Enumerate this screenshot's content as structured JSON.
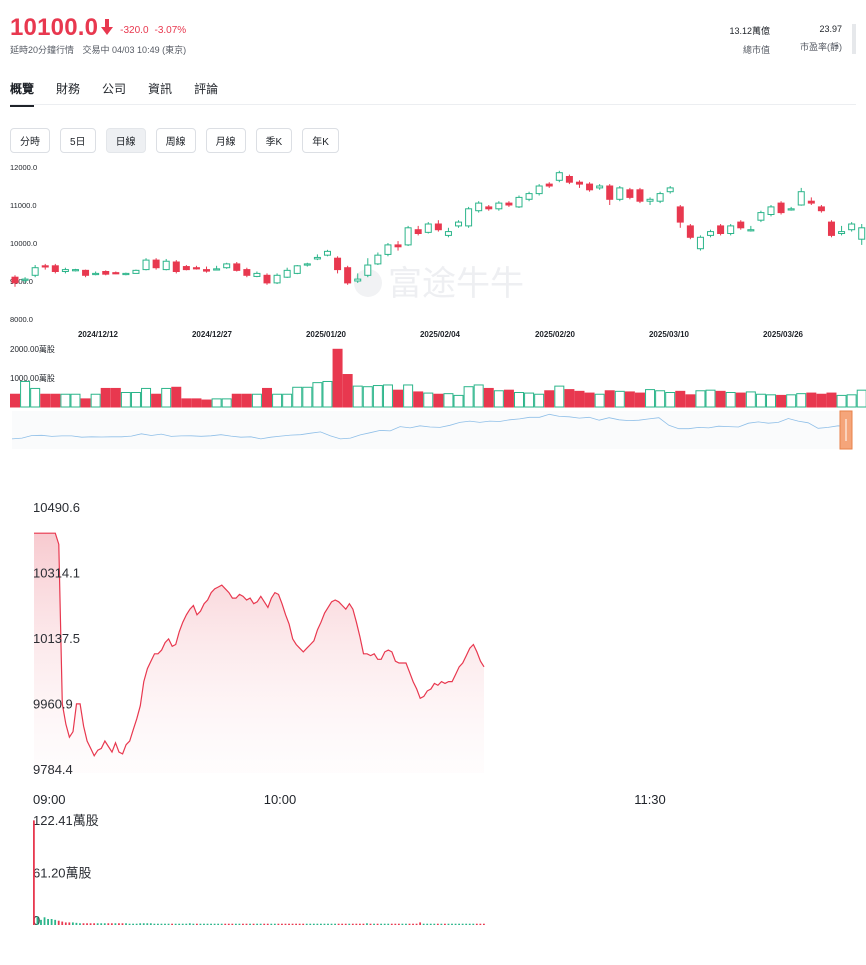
{
  "quote": {
    "price": "10100.0",
    "change": "-320.0",
    "change_pct": "-3.07%",
    "delay_note": "延時20分鐘行情",
    "trading_status": "交易中 04/03 10:49 (東京)",
    "market_cap_value": "13.12萬億",
    "market_cap_label": "總市值",
    "pe_value": "23.97",
    "pe_label": "市盈率(靜)"
  },
  "tabs": [
    {
      "label": "概覽",
      "active": true
    },
    {
      "label": "財務",
      "active": false
    },
    {
      "label": "公司",
      "active": false
    },
    {
      "label": "資訊",
      "active": false
    },
    {
      "label": "評論",
      "active": false
    }
  ],
  "periods": [
    {
      "label": "分時",
      "active": false
    },
    {
      "label": "5日",
      "active": false
    },
    {
      "label": "日線",
      "active": true
    },
    {
      "label": "周線",
      "active": false
    },
    {
      "label": "月線",
      "active": false
    },
    {
      "label": "季K",
      "active": false
    },
    {
      "label": "年K",
      "active": false
    }
  ],
  "watermark": "富途牛牛",
  "colors": {
    "up": "#2bb58a",
    "down": "#e8384f",
    "line": "#e8384f",
    "overview": "#8fbfe8"
  },
  "chart_data": [
    {
      "type": "candlestick",
      "y_ticks": [
        "12000.0",
        "11000.0",
        "10000.0",
        "9000.0",
        "8000.0"
      ],
      "ylim": [
        8000,
        12000
      ],
      "x_tick_labels": [
        "2024/12/12",
        "2024/12/27",
        "2025/01/20",
        "2025/02/04",
        "2025/02/20",
        "2025/03/10",
        "2025/03/26"
      ],
      "volume_ticks": [
        "2000.00萬股",
        "1000.00萬股"
      ],
      "candles": [
        {
          "o": 9100,
          "c": 8950,
          "h": 9150,
          "l": 8850
        },
        {
          "o": 9050,
          "c": 9050,
          "h": 9100,
          "l": 8950
        },
        {
          "o": 9150,
          "c": 9350,
          "h": 9420,
          "l": 9100
        },
        {
          "o": 9400,
          "c": 9380,
          "h": 9450,
          "l": 9300
        },
        {
          "o": 9400,
          "c": 9250,
          "h": 9450,
          "l": 9200
        },
        {
          "o": 9250,
          "c": 9300,
          "h": 9350,
          "l": 9200
        },
        {
          "o": 9300,
          "c": 9300,
          "h": 9320,
          "l": 9250
        },
        {
          "o": 9280,
          "c": 9150,
          "h": 9300,
          "l": 9100
        },
        {
          "o": 9180,
          "c": 9200,
          "h": 9250,
          "l": 9150
        },
        {
          "o": 9250,
          "c": 9180,
          "h": 9280,
          "l": 9150
        },
        {
          "o": 9220,
          "c": 9200,
          "h": 9250,
          "l": 9180
        },
        {
          "o": 9180,
          "c": 9200,
          "h": 9220,
          "l": 9150
        },
        {
          "o": 9200,
          "c": 9280,
          "h": 9300,
          "l": 9200
        },
        {
          "o": 9300,
          "c": 9550,
          "h": 9600,
          "l": 9280
        },
        {
          "o": 9550,
          "c": 9350,
          "h": 9600,
          "l": 9300
        },
        {
          "o": 9300,
          "c": 9520,
          "h": 9580,
          "l": 9280
        },
        {
          "o": 9500,
          "c": 9250,
          "h": 9550,
          "l": 9200
        },
        {
          "o": 9380,
          "c": 9300,
          "h": 9420,
          "l": 9280
        },
        {
          "o": 9350,
          "c": 9320,
          "h": 9400,
          "l": 9300
        },
        {
          "o": 9300,
          "c": 9260,
          "h": 9380,
          "l": 9220
        },
        {
          "o": 9300,
          "c": 9320,
          "h": 9400,
          "l": 9280
        },
        {
          "o": 9350,
          "c": 9450,
          "h": 9480,
          "l": 9320
        },
        {
          "o": 9450,
          "c": 9280,
          "h": 9500,
          "l": 9250
        },
        {
          "o": 9300,
          "c": 9150,
          "h": 9350,
          "l": 9100
        },
        {
          "o": 9120,
          "c": 9200,
          "h": 9250,
          "l": 9100
        },
        {
          "o": 9150,
          "c": 8950,
          "h": 9200,
          "l": 8900
        },
        {
          "o": 8950,
          "c": 9150,
          "h": 9200,
          "l": 8920
        },
        {
          "o": 9100,
          "c": 9280,
          "h": 9350,
          "l": 9080
        },
        {
          "o": 9200,
          "c": 9400,
          "h": 9420,
          "l": 9180
        },
        {
          "o": 9420,
          "c": 9450,
          "h": 9480,
          "l": 9380
        },
        {
          "o": 9580,
          "c": 9620,
          "h": 9700,
          "l": 9550
        },
        {
          "o": 9680,
          "c": 9780,
          "h": 9820,
          "l": 9650
        },
        {
          "o": 9600,
          "c": 9300,
          "h": 9650,
          "l": 9200
        },
        {
          "o": 9350,
          "c": 8950,
          "h": 9400,
          "l": 8900
        },
        {
          "o": 9000,
          "c": 9050,
          "h": 9200,
          "l": 8950
        },
        {
          "o": 9150,
          "c": 9420,
          "h": 9600,
          "l": 9100
        },
        {
          "o": 9450,
          "c": 9680,
          "h": 9750,
          "l": 9420
        },
        {
          "o": 9700,
          "c": 9950,
          "h": 10000,
          "l": 9650
        },
        {
          "o": 9950,
          "c": 9900,
          "h": 10050,
          "l": 9800
        },
        {
          "o": 9950,
          "c": 10400,
          "h": 10450,
          "l": 9920
        },
        {
          "o": 10350,
          "c": 10250,
          "h": 10450,
          "l": 10200
        },
        {
          "o": 10280,
          "c": 10500,
          "h": 10550,
          "l": 10250
        },
        {
          "o": 10500,
          "c": 10350,
          "h": 10600,
          "l": 10300
        },
        {
          "o": 10200,
          "c": 10300,
          "h": 10400,
          "l": 10150
        },
        {
          "o": 10450,
          "c": 10550,
          "h": 10600,
          "l": 10400
        },
        {
          "o": 10450,
          "c": 10900,
          "h": 10950,
          "l": 10400
        },
        {
          "o": 10850,
          "c": 11050,
          "h": 11100,
          "l": 10800
        },
        {
          "o": 10950,
          "c": 10900,
          "h": 11000,
          "l": 10850
        },
        {
          "o": 10900,
          "c": 11050,
          "h": 11100,
          "l": 10850
        },
        {
          "o": 11050,
          "c": 11000,
          "h": 11100,
          "l": 10950
        },
        {
          "o": 10950,
          "c": 11200,
          "h": 11250,
          "l": 10920
        },
        {
          "o": 11150,
          "c": 11300,
          "h": 11350,
          "l": 11100
        },
        {
          "o": 11300,
          "c": 11500,
          "h": 11550,
          "l": 11250
        },
        {
          "o": 11550,
          "c": 11500,
          "h": 11600,
          "l": 11450
        },
        {
          "o": 11650,
          "c": 11850,
          "h": 11900,
          "l": 11600
        },
        {
          "o": 11750,
          "c": 11600,
          "h": 11800,
          "l": 11550
        },
        {
          "o": 11600,
          "c": 11550,
          "h": 11650,
          "l": 11450
        },
        {
          "o": 11550,
          "c": 11400,
          "h": 11600,
          "l": 11350
        },
        {
          "o": 11450,
          "c": 11500,
          "h": 11550,
          "l": 11400
        },
        {
          "o": 11500,
          "c": 11150,
          "h": 11550,
          "l": 11000
        },
        {
          "o": 11150,
          "c": 11450,
          "h": 11500,
          "l": 11100
        },
        {
          "o": 11400,
          "c": 11200,
          "h": 11450,
          "l": 11150
        },
        {
          "o": 11400,
          "c": 11100,
          "h": 11450,
          "l": 11050
        },
        {
          "o": 11100,
          "c": 11150,
          "h": 11200,
          "l": 11000
        },
        {
          "o": 11100,
          "c": 11300,
          "h": 11350,
          "l": 11050
        },
        {
          "o": 11350,
          "c": 11450,
          "h": 11500,
          "l": 11300
        },
        {
          "o": 10950,
          "c": 10550,
          "h": 11000,
          "l": 10400
        },
        {
          "o": 10450,
          "c": 10150,
          "h": 10500,
          "l": 10100
        },
        {
          "o": 9850,
          "c": 10150,
          "h": 10200,
          "l": 9800
        },
        {
          "o": 10200,
          "c": 10300,
          "h": 10350,
          "l": 10150
        },
        {
          "o": 10450,
          "c": 10250,
          "h": 10500,
          "l": 10200
        },
        {
          "o": 10250,
          "c": 10450,
          "h": 10500,
          "l": 10200
        },
        {
          "o": 10550,
          "c": 10400,
          "h": 10600,
          "l": 10350
        },
        {
          "o": 10350,
          "c": 10350,
          "h": 10450,
          "l": 10300
        },
        {
          "o": 10600,
          "c": 10800,
          "h": 10850,
          "l": 10550
        },
        {
          "o": 10750,
          "c": 10950,
          "h": 11000,
          "l": 10700
        },
        {
          "o": 11050,
          "c": 10800,
          "h": 11100,
          "l": 10750
        },
        {
          "o": 10900,
          "c": 10900,
          "h": 10950,
          "l": 10850
        },
        {
          "o": 11000,
          "c": 11350,
          "h": 11450,
          "l": 10980
        },
        {
          "o": 11100,
          "c": 11050,
          "h": 11200,
          "l": 11000
        },
        {
          "o": 10950,
          "c": 10850,
          "h": 11000,
          "l": 10800
        },
        {
          "o": 10550,
          "c": 10200,
          "h": 10600,
          "l": 10150
        },
        {
          "o": 10250,
          "c": 10300,
          "h": 10450,
          "l": 10200
        },
        {
          "o": 10350,
          "c": 10500,
          "h": 10550,
          "l": 10300
        },
        {
          "o": 10100,
          "c": 10400,
          "h": 10500,
          "l": 9950
        }
      ],
      "volume": [
        440,
        880,
        640,
        440,
        440,
        440,
        440,
        280,
        440,
        640,
        640,
        500,
        500,
        640,
        440,
        640,
        680,
        280,
        280,
        240,
        280,
        280,
        440,
        440,
        440,
        640,
        440,
        440,
        680,
        680,
        840,
        880,
        1990,
        1120,
        720,
        700,
        740,
        760,
        580,
        760,
        520,
        480,
        440,
        460,
        400,
        700,
        760,
        640,
        560,
        580,
        500,
        480,
        440,
        560,
        720,
        600,
        540,
        480,
        440,
        560,
        540,
        520,
        480,
        600,
        560,
        500,
        540,
        420,
        560,
        580,
        540,
        500,
        480,
        520,
        440,
        420,
        400,
        420,
        460,
        480,
        440,
        480,
        400,
        420,
        580
      ]
    },
    {
      "type": "area",
      "y_ticks": [
        "10490.6",
        "10314.1",
        "10137.5",
        "9960.9",
        "9784.4"
      ],
      "ylim": [
        9784.4,
        10490.6
      ],
      "x_tick_labels": [
        "09:00",
        "10:00",
        "11:30"
      ],
      "volume_ticks": [
        "122.41萬股",
        "61.20萬股",
        "0"
      ],
      "prices": [
        10420,
        10420,
        10420,
        10420,
        10420,
        10420,
        10420,
        10390,
        9960,
        9905,
        9870,
        9885,
        9960,
        9960,
        9900,
        9860,
        9840,
        9820,
        9835,
        9840,
        9860,
        9845,
        9830,
        9855,
        9830,
        9825,
        9850,
        9860,
        9890,
        9920,
        9955,
        10020,
        10055,
        10075,
        10095,
        10095,
        10105,
        10125,
        10135,
        10115,
        10120,
        10155,
        10180,
        10200,
        10215,
        10225,
        10200,
        10210,
        10230,
        10240,
        10260,
        10270,
        10275,
        10280,
        10270,
        10260,
        10245,
        10245,
        10255,
        10250,
        10240,
        10245,
        10230,
        10235,
        10250,
        10235,
        10220,
        10245,
        10260,
        10255,
        10230,
        10200,
        10175,
        10135,
        10120,
        10110,
        10100,
        10110,
        10120,
        10130,
        10160,
        10180,
        10205,
        10220,
        10235,
        10240,
        10235,
        10225,
        10215,
        10230,
        10215,
        10180,
        10140,
        10095,
        10095,
        10090,
        10095,
        10080,
        10080,
        10100,
        10105,
        10100,
        10075,
        10070,
        10070,
        10070,
        10045,
        10020,
        10000,
        9975,
        9980,
        9995,
        10000,
        10015,
        10010,
        10020,
        10015,
        10020,
        10020,
        10040,
        10060,
        10070,
        10090,
        10110,
        10120,
        10100,
        10075,
        10060
      ],
      "volumes": [
        122,
        10,
        6,
        9,
        7,
        7,
        6,
        5,
        4,
        3,
        3,
        3,
        2.5,
        2,
        2,
        2,
        2,
        2,
        2,
        2,
        2,
        2,
        2,
        2,
        2,
        2,
        2,
        1.5,
        1.5,
        1.5,
        2,
        2,
        2,
        2,
        1.5,
        1.5,
        1.5,
        1.5,
        1.5,
        1.5,
        1.5,
        1.5,
        1.5,
        1.5,
        2,
        1.5,
        1.5,
        1.5,
        1.5,
        1.5,
        1.5,
        1.5,
        1.5,
        1.5,
        1.5,
        1.5,
        1.5,
        1.5,
        1.5,
        1.5,
        1.5,
        1.5,
        1.5,
        1.5,
        1.5,
        1.5,
        1.5,
        1.5,
        1.5,
        1.5,
        1.5,
        1.5,
        1.5,
        1.5,
        1.5,
        1.5,
        1.5,
        1.5,
        1.5,
        1.5,
        1.5,
        1.5,
        1.5,
        1.5,
        1.5,
        1.5,
        1.5,
        1.5,
        1.5,
        1.5,
        1.5,
        1.5,
        1.5,
        1.5,
        2,
        1.5,
        1.5,
        1.5,
        1.5,
        1.5,
        1.5,
        1.5,
        1.5,
        1.5,
        1.5,
        1.5,
        1.5,
        1.5,
        1.5,
        3,
        1.5,
        1.5,
        1.5,
        1.5,
        1.5,
        1.5,
        1.5,
        1.5,
        1.5,
        1.5,
        1.5,
        1.5,
        1.5,
        1.5,
        1.5,
        1.5,
        1.5,
        1.5
      ]
    }
  ]
}
